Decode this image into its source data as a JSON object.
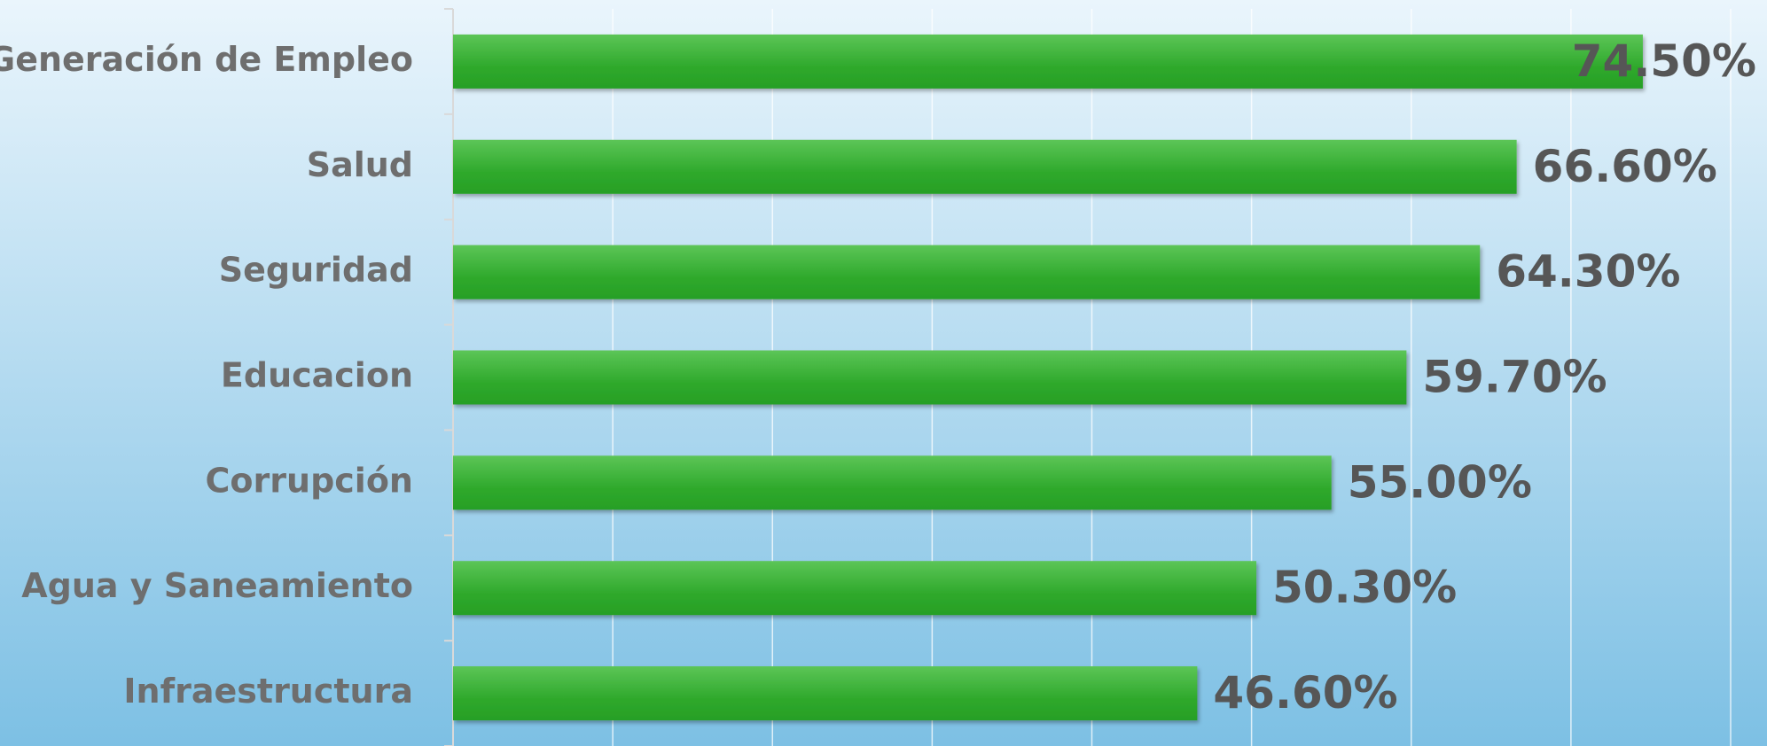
{
  "chart_data": {
    "type": "barh",
    "categories": [
      "Generación de Empleo",
      "Salud",
      "Seguridad",
      "Educacion",
      "Corrupción",
      "Agua y Saneamiento",
      "Infraestructura"
    ],
    "values": [
      74.5,
      66.6,
      64.3,
      59.7,
      55.0,
      50.3,
      46.6
    ],
    "value_labels": [
      "74.50%",
      "66.60%",
      "64.30%",
      "59.70%",
      "55.00%",
      "50.30%",
      "46.60%"
    ],
    "color": "#36ae33",
    "xlim": [
      0,
      80
    ],
    "xticks": [
      0,
      10,
      20,
      30,
      40,
      50,
      60,
      70,
      80
    ],
    "grid": true
  }
}
